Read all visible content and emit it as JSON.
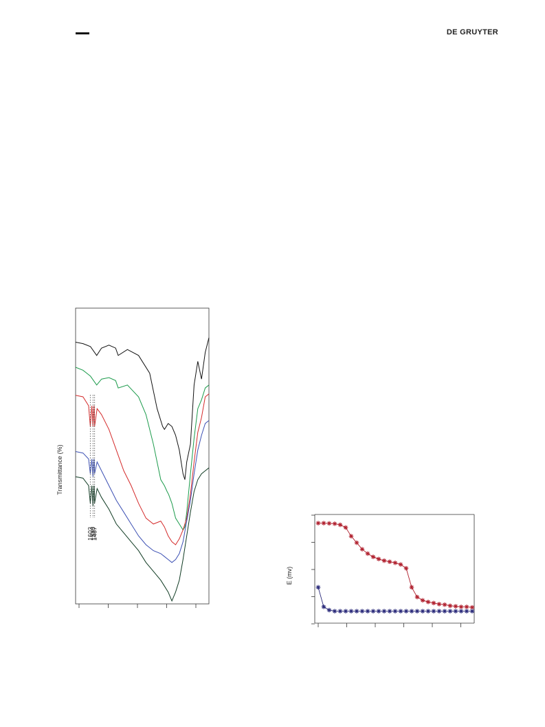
{
  "header": {
    "publisher": "DE GRUYTER"
  },
  "chart_data": [
    {
      "type": "line",
      "ylabel": "Transmittance (%)",
      "xlabel": "",
      "grid": false,
      "annotations": [
        "1603",
        "1530",
        "1487"
      ],
      "series": [
        {
          "color": "#111111",
          "x": [
            4000,
            3800,
            3600,
            3430,
            3300,
            3100,
            2920,
            2850,
            2600,
            2300,
            2000,
            1800,
            1650,
            1600,
            1500,
            1400,
            1300,
            1200,
            1100,
            1050,
            1000,
            900,
            800,
            700,
            600,
            500,
            400
          ],
          "y": [
            0.115,
            0.12,
            0.13,
            0.16,
            0.135,
            0.125,
            0.135,
            0.16,
            0.14,
            0.16,
            0.22,
            0.34,
            0.4,
            0.41,
            0.39,
            0.4,
            0.43,
            0.48,
            0.56,
            0.58,
            0.52,
            0.46,
            0.26,
            0.18,
            0.24,
            0.15,
            0.1
          ]
        },
        {
          "color": "#1a9a4a",
          "x": [
            4000,
            3800,
            3600,
            3430,
            3300,
            3100,
            2920,
            2850,
            2600,
            2300,
            2100,
            1900,
            1700,
            1603,
            1530,
            1487,
            1400,
            1300,
            1200,
            1100,
            1050,
            1000,
            900,
            800,
            700,
            600,
            500,
            400
          ],
          "y": [
            0.2,
            0.21,
            0.23,
            0.26,
            0.24,
            0.235,
            0.245,
            0.27,
            0.26,
            0.3,
            0.36,
            0.46,
            0.58,
            0.6,
            0.62,
            0.63,
            0.66,
            0.71,
            0.73,
            0.75,
            0.74,
            0.69,
            0.56,
            0.44,
            0.34,
            0.31,
            0.27,
            0.26
          ]
        },
        {
          "color": "#d42a2a",
          "x": [
            4000,
            3800,
            3650,
            3603,
            3560,
            3530,
            3500,
            3487,
            3420,
            3300,
            3100,
            2900,
            2700,
            2500,
            2300,
            2100,
            1900,
            1700,
            1600,
            1500,
            1400,
            1300,
            1200,
            1100,
            1000,
            900,
            800,
            700,
            600,
            500,
            400
          ],
          "y": [
            0.295,
            0.3,
            0.33,
            0.4,
            0.33,
            0.4,
            0.33,
            0.4,
            0.34,
            0.36,
            0.41,
            0.48,
            0.55,
            0.6,
            0.66,
            0.71,
            0.73,
            0.72,
            0.74,
            0.77,
            0.79,
            0.8,
            0.78,
            0.75,
            0.71,
            0.63,
            0.52,
            0.42,
            0.37,
            0.3,
            0.29
          ]
        },
        {
          "color": "#3b4fb3",
          "x": [
            4000,
            3800,
            3650,
            3603,
            3560,
            3530,
            3500,
            3487,
            3420,
            3300,
            3100,
            2900,
            2700,
            2500,
            2300,
            2100,
            1900,
            1700,
            1600,
            1500,
            1400,
            1300,
            1200,
            1100,
            1000,
            900,
            800,
            700,
            600,
            500,
            400
          ],
          "y": [
            0.485,
            0.49,
            0.51,
            0.56,
            0.51,
            0.57,
            0.51,
            0.56,
            0.52,
            0.55,
            0.6,
            0.65,
            0.69,
            0.73,
            0.77,
            0.8,
            0.82,
            0.83,
            0.84,
            0.85,
            0.86,
            0.85,
            0.83,
            0.79,
            0.72,
            0.65,
            0.56,
            0.48,
            0.43,
            0.39,
            0.38
          ]
        },
        {
          "color": "#0f3a22",
          "x": [
            4000,
            3800,
            3650,
            3603,
            3560,
            3530,
            3500,
            3487,
            3420,
            3300,
            3100,
            2900,
            2700,
            2500,
            2300,
            2100,
            1900,
            1700,
            1600,
            1500,
            1400,
            1300,
            1200,
            1100,
            1000,
            900,
            800,
            700,
            600,
            500,
            400
          ],
          "y": [
            0.57,
            0.575,
            0.6,
            0.66,
            0.6,
            0.67,
            0.6,
            0.66,
            0.61,
            0.64,
            0.68,
            0.73,
            0.76,
            0.79,
            0.82,
            0.86,
            0.89,
            0.92,
            0.94,
            0.96,
            0.99,
            0.96,
            0.92,
            0.85,
            0.77,
            0.69,
            0.62,
            0.58,
            0.56,
            0.55,
            0.54
          ]
        }
      ]
    },
    {
      "type": "line",
      "ylabel": "E (mv)",
      "xlabel": "",
      "grid": false,
      "series": [
        {
          "color": "#b0202e",
          "marker": "*",
          "x": [
            0,
            1,
            2,
            3,
            4,
            5,
            6,
            7,
            8,
            9,
            10,
            11,
            12,
            13,
            14,
            15,
            16,
            17,
            18,
            19,
            20,
            21,
            22,
            23,
            24,
            25,
            26,
            27,
            28
          ],
          "y": [
            0.92,
            0.92,
            0.918,
            0.915,
            0.905,
            0.88,
            0.8,
            0.74,
            0.68,
            0.64,
            0.61,
            0.59,
            0.575,
            0.565,
            0.555,
            0.54,
            0.505,
            0.33,
            0.24,
            0.21,
            0.195,
            0.185,
            0.175,
            0.17,
            0.16,
            0.155,
            0.15,
            0.15,
            0.145
          ]
        },
        {
          "color": "#2a2a7a",
          "marker": "*",
          "x": [
            0,
            1,
            2,
            3,
            4,
            5,
            6,
            7,
            8,
            9,
            10,
            11,
            12,
            13,
            14,
            15,
            16,
            17,
            18,
            19,
            20,
            21,
            22,
            23,
            24,
            25,
            26,
            27,
            28
          ],
          "y": [
            0.33,
            0.15,
            0.12,
            0.11,
            0.11,
            0.11,
            0.11,
            0.11,
            0.11,
            0.11,
            0.11,
            0.11,
            0.11,
            0.11,
            0.11,
            0.11,
            0.11,
            0.11,
            0.11,
            0.11,
            0.11,
            0.11,
            0.11,
            0.11,
            0.11,
            0.11,
            0.11,
            0.11,
            0.11
          ]
        }
      ]
    }
  ]
}
